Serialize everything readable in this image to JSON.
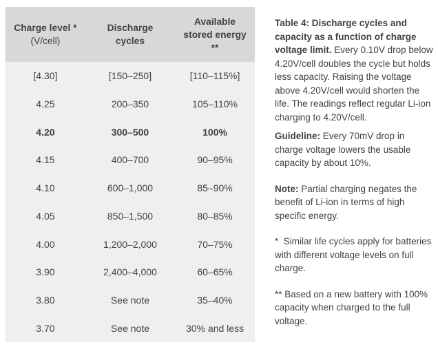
{
  "colors": {
    "header_bg": "#d8d8d8",
    "body_bg": "#efefef",
    "text": "#424242"
  },
  "table": {
    "header": [
      {
        "lines": [
          "Charge level *",
          "(V/cell)"
        ]
      },
      {
        "lines": [
          "Discharge",
          "cycles"
        ]
      },
      {
        "lines": [
          "Available",
          "stored energy",
          "**"
        ]
      }
    ],
    "rows": [
      {
        "charge": "[4.30]",
        "cycles": "[150–250]",
        "energy": "[110–115%]",
        "bold": false
      },
      {
        "charge": "4.25",
        "cycles": "200–350",
        "energy": "105–110%",
        "bold": false
      },
      {
        "charge": "4.20",
        "cycles": "300–500",
        "energy": "100%",
        "bold": true
      },
      {
        "charge": "4.15",
        "cycles": "400–700",
        "energy": "90–95%",
        "bold": false
      },
      {
        "charge": "4.10",
        "cycles": "600–1,000",
        "energy": "85–90%",
        "bold": false
      },
      {
        "charge": "4.05",
        "cycles": "850–1,500",
        "energy": "80–85%",
        "bold": false
      },
      {
        "charge": "4.00",
        "cycles": "1,200–2,000",
        "energy": "70–75%",
        "bold": false
      },
      {
        "charge": "3.90",
        "cycles": "2,400–4,000",
        "energy": "60–65%",
        "bold": false
      },
      {
        "charge": "3.80",
        "cycles": "See note",
        "energy": "35–40%",
        "bold": false
      },
      {
        "charge": "3.70",
        "cycles": "See note",
        "energy": "30% and less",
        "bold": false
      }
    ]
  },
  "notes": {
    "paragraphs": [
      {
        "bold": "Table 4: Discharge cycles and capacity as a function of charge voltage limit.",
        "text": " Every 0.10V drop below 4.20V/cell doubles the cycle but holds less capacity. Raising the voltage above 4.20V/cell would shorten the life. The readings reflect regular Li-ion charging to 4.20V/cell.",
        "gap": "small"
      },
      {
        "bold": "Guideline:",
        "text": " Every 70mV drop in charge voltage lowers the usable capacity by about 10%.",
        "gap": "small"
      },
      {
        "bold": "Note:",
        "text": " Partial charging negates the benefit of Li-ion in terms of high specific energy.",
        "gap": "large"
      },
      {
        "bold": "",
        "text": "*  Similar life cycles apply for batteries with different voltage levels on full charge.",
        "gap": "large"
      },
      {
        "bold": "",
        "text": "** Based on a new battery with 100% capacity when charged to the full voltage.",
        "gap": "large"
      }
    ]
  }
}
